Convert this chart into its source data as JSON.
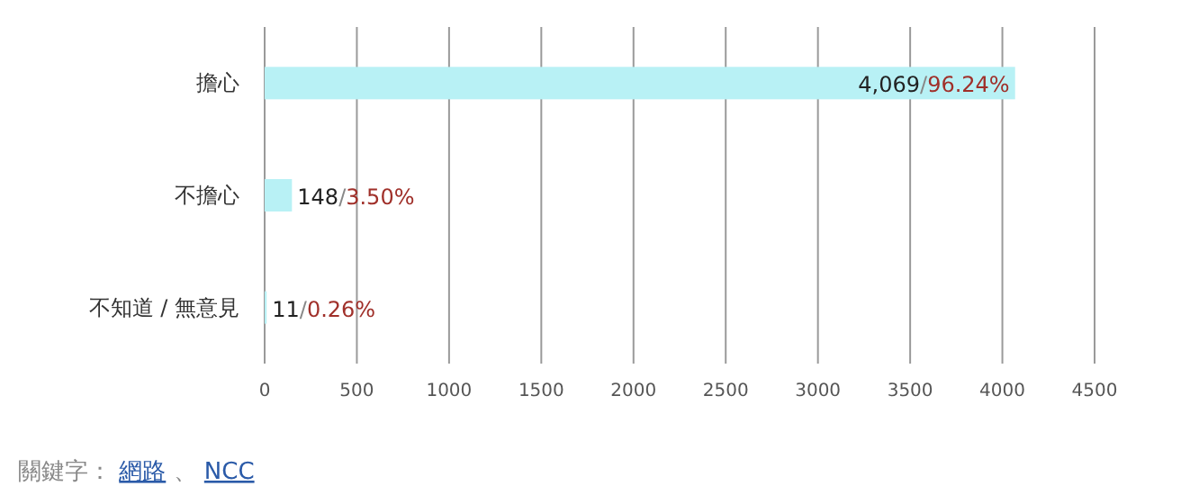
{
  "chart_data": {
    "type": "bar",
    "orientation": "horizontal",
    "categories": [
      "擔心",
      "不擔心",
      "不知道 / 無意見"
    ],
    "values": [
      4069,
      148,
      11
    ],
    "color": "#b8f1f5",
    "value_labels": [
      "4,069/96.24%",
      "148/3.50%",
      "11/0.26%"
    ],
    "xlim": [
      0,
      4500
    ],
    "xticks": [
      0,
      500,
      1000,
      1500,
      2000,
      2500,
      3000,
      3500,
      4000,
      4500
    ],
    "grid": "x",
    "annotations": [
      "關鍵字： 網路 、 NCC"
    ]
  }
}
